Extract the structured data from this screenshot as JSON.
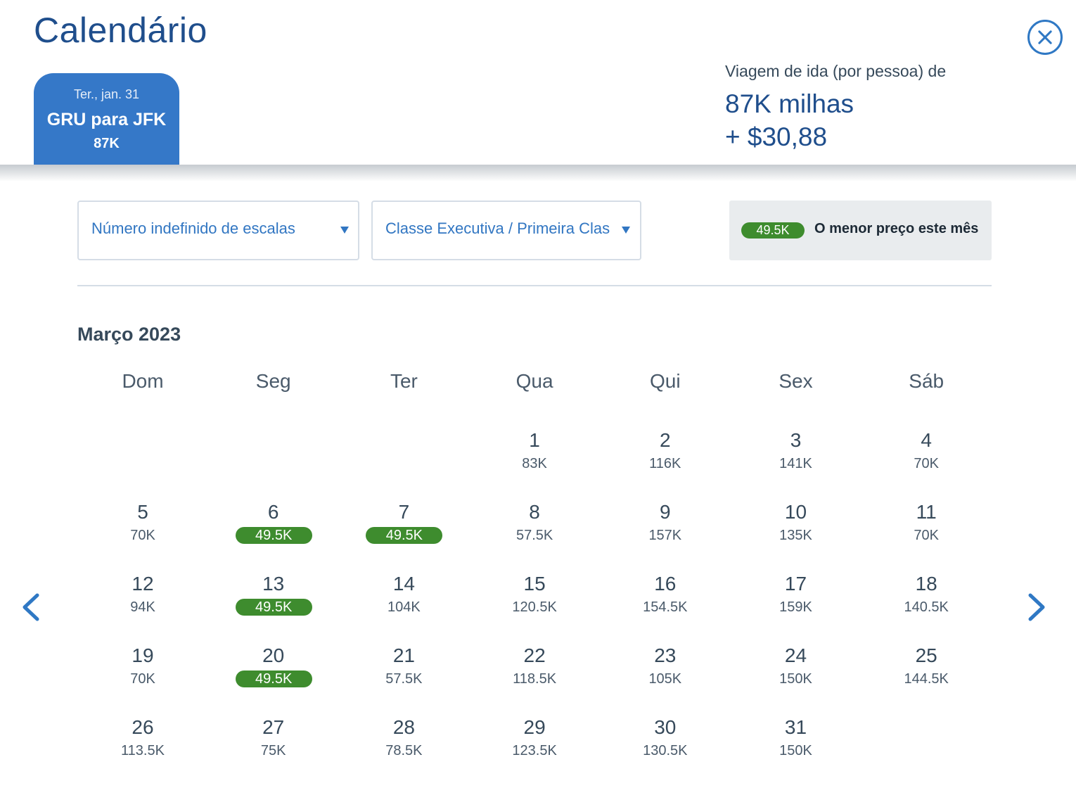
{
  "header": {
    "title": "Calendário",
    "close_icon": "close-circle-icon"
  },
  "trip_tab": {
    "date": "Ter., jan. 31",
    "route": "GRU para JFK",
    "price": "87K"
  },
  "fare_summary": {
    "label": "Viagem de ida (por pessoa) de",
    "miles": "87K milhas",
    "tax": "+ $30,88"
  },
  "filters": {
    "stops": {
      "value": "Número indefinido de escalas"
    },
    "cabin": {
      "value": "Classe Executiva / Primeira Clas"
    }
  },
  "legend": {
    "price": "49.5K",
    "text": "O menor preço este mês"
  },
  "calendar": {
    "month": "Março 2023",
    "weekdays": [
      "Dom",
      "Seg",
      "Ter",
      "Qua",
      "Qui",
      "Sex",
      "Sáb"
    ],
    "days": [
      {
        "day": "1",
        "price": "83K",
        "lowest": false
      },
      {
        "day": "2",
        "price": "116K",
        "lowest": false
      },
      {
        "day": "3",
        "price": "141K",
        "lowest": false
      },
      {
        "day": "4",
        "price": "70K",
        "lowest": false
      },
      {
        "day": "5",
        "price": "70K",
        "lowest": false
      },
      {
        "day": "6",
        "price": "49.5K",
        "lowest": true
      },
      {
        "day": "7",
        "price": "49.5K",
        "lowest": true
      },
      {
        "day": "8",
        "price": "57.5K",
        "lowest": false
      },
      {
        "day": "9",
        "price": "157K",
        "lowest": false
      },
      {
        "day": "10",
        "price": "135K",
        "lowest": false
      },
      {
        "day": "11",
        "price": "70K",
        "lowest": false
      },
      {
        "day": "12",
        "price": "94K",
        "lowest": false
      },
      {
        "day": "13",
        "price": "49.5K",
        "lowest": true
      },
      {
        "day": "14",
        "price": "104K",
        "lowest": false
      },
      {
        "day": "15",
        "price": "120.5K",
        "lowest": false
      },
      {
        "day": "16",
        "price": "154.5K",
        "lowest": false
      },
      {
        "day": "17",
        "price": "159K",
        "lowest": false
      },
      {
        "day": "18",
        "price": "140.5K",
        "lowest": false
      },
      {
        "day": "19",
        "price": "70K",
        "lowest": false
      },
      {
        "day": "20",
        "price": "49.5K",
        "lowest": true
      },
      {
        "day": "21",
        "price": "57.5K",
        "lowest": false
      },
      {
        "day": "22",
        "price": "118.5K",
        "lowest": false
      },
      {
        "day": "23",
        "price": "105K",
        "lowest": false
      },
      {
        "day": "24",
        "price": "150K",
        "lowest": false
      },
      {
        "day": "25",
        "price": "144.5K",
        "lowest": false
      },
      {
        "day": "26",
        "price": "113.5K",
        "lowest": false
      },
      {
        "day": "27",
        "price": "75K",
        "lowest": false
      },
      {
        "day": "28",
        "price": "78.5K",
        "lowest": false
      },
      {
        "day": "29",
        "price": "123.5K",
        "lowest": false
      },
      {
        "day": "30",
        "price": "130.5K",
        "lowest": false
      },
      {
        "day": "31",
        "price": "150K",
        "lowest": false
      }
    ]
  },
  "nav": {
    "prev_icon": "chevron-left-icon",
    "next_icon": "chevron-right-icon"
  },
  "colors": {
    "brand_blue": "#3578c8",
    "title_blue": "#1f4e8c",
    "lowest_green": "#3e8c2e"
  }
}
